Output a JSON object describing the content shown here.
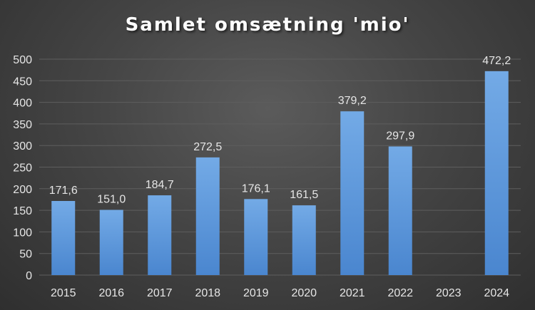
{
  "chart_data": {
    "type": "bar",
    "title": "Samlet omsætning 'mio'",
    "categories": [
      "2015",
      "2016",
      "2017",
      "2018",
      "2019",
      "2020",
      "2021",
      "2022",
      "2023",
      "2024"
    ],
    "values": [
      171.6,
      151.0,
      184.7,
      272.5,
      176.1,
      161.5,
      379.2,
      297.9,
      null,
      472.2
    ],
    "data_labels": [
      "171,6",
      "151,0",
      "184,7",
      "272,5",
      "176,1",
      "161,5",
      "379,2",
      "297,9",
      "",
      "472,2"
    ],
    "yticks": [
      0,
      50,
      100,
      150,
      200,
      250,
      300,
      350,
      400,
      450,
      500
    ],
    "ylim": [
      0,
      500
    ],
    "grid": true,
    "legend": false,
    "colors": {
      "bar_top": "#73aae6",
      "bar_bottom": "#4a86cf",
      "gridline": "#5e5e5e",
      "text": "#e6e6e6",
      "title": "#ffffff"
    }
  }
}
